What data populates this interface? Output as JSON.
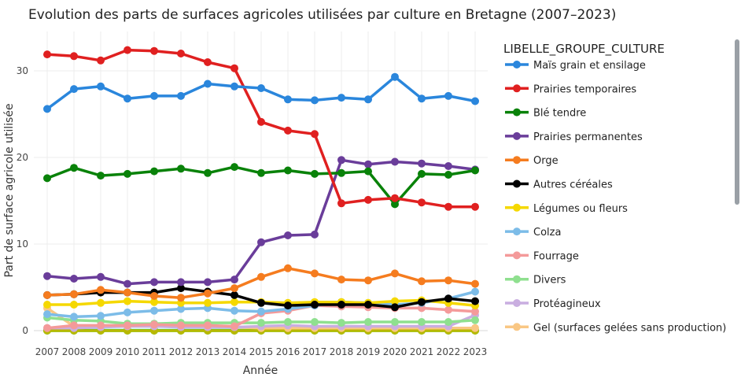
{
  "chart_data": {
    "type": "line",
    "title": "Evolution des parts de surfaces agricoles utilisées par culture en Bretagne (2007–2023)",
    "xlabel": "Année",
    "ylabel": "Part de surface agricole utilisée",
    "x": [
      2007,
      2008,
      2009,
      2010,
      2011,
      2012,
      2013,
      2014,
      2015,
      2016,
      2017,
      2018,
      2019,
      2020,
      2021,
      2022,
      2023
    ],
    "xticks": [
      "2007",
      "2008",
      "2009",
      "2010",
      "2011",
      "2012",
      "2013",
      "2014",
      "2015",
      "2016",
      "2017",
      "2018",
      "2019",
      "2020",
      "2021",
      "2022",
      "2023"
    ],
    "yticks": [
      {
        "value": 0,
        "label": "0"
      },
      {
        "value": 10,
        "label": "10"
      },
      {
        "value": 20,
        "label": "20"
      },
      {
        "value": 30,
        "label": "30"
      }
    ],
    "ylim": [
      -1,
      34.2
    ],
    "grid": true,
    "legend_title": "LIBELLE_GROUPE_CULTURE",
    "legend_position": "right",
    "series": [
      {
        "name": "Maïs grain et ensilage",
        "color": "#2a86dc",
        "values": [
          25.6,
          27.9,
          28.2,
          26.8,
          27.1,
          27.1,
          28.5,
          28.2,
          28.0,
          26.7,
          26.6,
          26.9,
          26.7,
          29.3,
          26.8,
          27.1,
          26.5
        ]
      },
      {
        "name": "Prairies temporaires",
        "color": "#e02020",
        "values": [
          31.9,
          31.7,
          31.2,
          32.4,
          32.3,
          32.0,
          31.0,
          30.3,
          24.1,
          23.1,
          22.7,
          14.7,
          15.1,
          15.3,
          14.8,
          14.3,
          14.3
        ]
      },
      {
        "name": "Blé tendre",
        "color": "#098209",
        "values": [
          17.6,
          18.8,
          17.9,
          18.1,
          18.4,
          18.7,
          18.2,
          18.9,
          18.2,
          18.5,
          18.1,
          18.2,
          18.4,
          14.6,
          18.1,
          18.0,
          18.5
        ]
      },
      {
        "name": "Prairies permanentes",
        "color": "#6a3d9a",
        "values": [
          6.3,
          6.0,
          6.2,
          5.4,
          5.6,
          5.6,
          5.6,
          5.9,
          10.2,
          11.0,
          11.1,
          19.7,
          19.2,
          19.5,
          19.3,
          19.0,
          18.6
        ]
      },
      {
        "name": "Orge",
        "color": "#f57c1f",
        "values": [
          4.1,
          4.2,
          4.7,
          4.4,
          4.0,
          3.8,
          4.3,
          4.9,
          6.2,
          7.2,
          6.6,
          5.9,
          5.8,
          6.6,
          5.7,
          5.8,
          5.4
        ]
      },
      {
        "name": "Autres céréales",
        "color": "#000000",
        "values": [
          4.1,
          4.2,
          4.4,
          4.4,
          4.4,
          4.9,
          4.5,
          4.1,
          3.2,
          2.9,
          3.0,
          3.0,
          3.0,
          2.7,
          3.3,
          3.7,
          3.4
        ]
      },
      {
        "name": "Légumes ou fleurs",
        "color": "#f5d800",
        "values": [
          3.0,
          3.0,
          3.2,
          3.4,
          3.3,
          3.2,
          3.2,
          3.3,
          3.3,
          3.2,
          3.3,
          3.3,
          3.2,
          3.4,
          3.5,
          3.2,
          2.9
        ]
      },
      {
        "name": "Colza",
        "color": "#7cbce8",
        "values": [
          1.9,
          1.6,
          1.7,
          2.1,
          2.3,
          2.5,
          2.6,
          2.3,
          2.2,
          2.5,
          2.9,
          3.3,
          3.2,
          3.0,
          3.2,
          3.7,
          4.5
        ]
      },
      {
        "name": "Fourrage",
        "color": "#f49a9a",
        "values": [
          0.3,
          0.6,
          0.6,
          0.6,
          0.7,
          0.6,
          0.6,
          0.5,
          2.0,
          2.3,
          2.9,
          2.8,
          2.7,
          2.6,
          2.6,
          2.4,
          2.2
        ]
      },
      {
        "name": "Divers",
        "color": "#8fe08f",
        "values": [
          1.5,
          1.2,
          1.1,
          0.8,
          0.8,
          0.9,
          0.9,
          0.9,
          0.9,
          1.0,
          1.0,
          0.9,
          1.0,
          1.0,
          1.0,
          1.0,
          1.2
        ]
      },
      {
        "name": "Protéagineux",
        "color": "#c9aee0",
        "values": [
          0.3,
          0.3,
          0.4,
          0.5,
          0.5,
          0.4,
          0.4,
          0.4,
          0.5,
          0.6,
          0.5,
          0.5,
          0.5,
          0.5,
          0.5,
          0.5,
          1.8
        ]
      },
      {
        "name": "Gel (surfaces gelées sans production)",
        "color": "#f9c784",
        "values": [
          2.6,
          0.5,
          0.5,
          0.5,
          0.5,
          0.5,
          0.4,
          0.4,
          0.3,
          0.3,
          0.3,
          0.3,
          0.3,
          0.3,
          0.3,
          0.3,
          0.3
        ]
      }
    ],
    "baseline_series": [
      {
        "color": "#19c9c9",
        "values": [
          0.05,
          0.05,
          0.05,
          0.05,
          0.05,
          0.05,
          0.05,
          0.05,
          0.05,
          0.05,
          0.05,
          0.05,
          0.05,
          0.05,
          0.05,
          0.05,
          0.05
        ]
      },
      {
        "color": "#00e000",
        "values": [
          0.0,
          0.0,
          0.0,
          0.0,
          0.0,
          0.0,
          0.0,
          0.0,
          0.0,
          0.0,
          0.0,
          0.0,
          0.0,
          0.0,
          0.0,
          0.0,
          0.0
        ]
      },
      {
        "color": "#b8b800",
        "values": [
          0.0,
          0.0,
          0.0,
          0.0,
          0.0,
          0.0,
          0.0,
          0.0,
          0.0,
          0.0,
          0.0,
          0.0,
          0.0,
          0.0,
          0.0,
          0.0,
          0.0
        ]
      }
    ]
  }
}
